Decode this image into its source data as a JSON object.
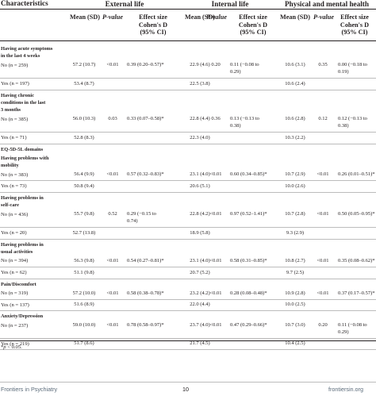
{
  "header": {
    "characteristics": "Characteristics",
    "groups": [
      "External life",
      "Internal life",
      "Physical and mental health"
    ],
    "mean_sd": "Mean (SD)",
    "p_value": "P-value",
    "effect_size_line1": "Effect size",
    "effect_size_line2": "Cohen's D",
    "effect_size_line3": "(95% CI)"
  },
  "rows": [
    {
      "kind": "section",
      "lines": [
        "Having acute symptoms",
        "in the last 4 weeks"
      ]
    },
    {
      "kind": "data",
      "label": "No (n = 259)",
      "m1": "57.2 (10.7)",
      "p1": "<0.01",
      "e1": [
        "0.39 (0.20–0.57)*"
      ],
      "m2": "22.9 (4.6)",
      "p2": "0.20",
      "e2": [
        "0.11 (−0.08 to",
        "0.29)"
      ],
      "m3": "10.6 (3.1)",
      "p3": "0.35",
      "e3": [
        "0.00 (−0.18 to",
        "0.19)"
      ]
    },
    {
      "kind": "data",
      "label": "Yes (n = 197)",
      "m1": "53.4 (8.7)",
      "p1": "",
      "e1": [],
      "m2": "22.5 (3.8)",
      "p2": "",
      "e2": [],
      "m3": "10.6 (2.4)",
      "p3": "",
      "e3": []
    },
    {
      "kind": "section",
      "lines": [
        "Having chronic",
        "conditions in the last",
        "3 months"
      ]
    },
    {
      "kind": "data",
      "label": "No (n = 385)",
      "m1": "56.0 (10.3)",
      "p1": "0.03",
      "e1": [
        "0.33 (0.07–0.58)*"
      ],
      "m2": "22.8 (4.4)",
      "p2": "0.36",
      "e2": [
        "0.13 (−0.13 to",
        "0.38)"
      ],
      "m3": "10.6 (2.8)",
      "p3": "0.12",
      "e3": [
        "0.12 (−0.13 to",
        "0.38)"
      ]
    },
    {
      "kind": "data",
      "label": "Yes (n = 71)",
      "m1": "52.8 (8.3)",
      "p1": "",
      "e1": [],
      "m2": "22.3 (4.0)",
      "p2": "",
      "e2": [],
      "m3": "10.3 (2.2)",
      "p3": "",
      "e3": []
    },
    {
      "kind": "section",
      "lines": [
        "EQ-5D-5L domains"
      ]
    },
    {
      "kind": "section",
      "lines": [
        "Having problems with",
        "mobility"
      ]
    },
    {
      "kind": "data",
      "label": "No (n = 383)",
      "m1": "56.4 (9.9)",
      "p1": "<0.01",
      "e1": [
        "0.57 (0.32–0.83)*"
      ],
      "m2": "23.1 (4.0)",
      "p2": "<0.01",
      "e2": [
        "0.60 (0.34–0.85)*"
      ],
      "m3": "10.7 (2.9)",
      "p3": "<0.01",
      "e3": [
        "0.26 (0.01–0.51)*"
      ]
    },
    {
      "kind": "data",
      "label": "Yes (n = 73)",
      "m1": "50.8 (9.4)",
      "p1": "",
      "e1": [],
      "m2": "20.6 (5.1)",
      "p2": "",
      "e2": [],
      "m3": "10.0 (2.6)",
      "p3": "",
      "e3": []
    },
    {
      "kind": "section",
      "lines": [
        "Having problems in",
        "self-care"
      ]
    },
    {
      "kind": "data",
      "label": "No (n = 436)",
      "m1": "55.7 (9.8)",
      "p1": "0.52",
      "e1": [
        "0.29 (−0.15 to",
        "0.74)"
      ],
      "m2": "22.8 (4.2)",
      "p2": "<0.01",
      "e2": [
        "0.97 (0.52–1.41)*"
      ],
      "m3": "10.7 (2.8)",
      "p3": "<0.01",
      "e3": [
        "0.50 (0.05–0.95)*"
      ]
    },
    {
      "kind": "data",
      "label": "Yes (n = 20)",
      "m1": "52.7 (13.8)",
      "p1": "",
      "e1": [],
      "m2": "18.9 (5.8)",
      "p2": "",
      "e2": [],
      "m3": "9.3 (2.9)",
      "p3": "",
      "e3": []
    },
    {
      "kind": "section",
      "lines": [
        "Having problems in",
        "usual activities"
      ]
    },
    {
      "kind": "data",
      "label": "No (n = 394)",
      "m1": "56.3 (9.8)",
      "p1": "<0.01",
      "e1": [
        "0.54 (0.27–0.81)*"
      ],
      "m2": "23.1 (4.0)",
      "p2": "<0.01",
      "e2": [
        "0.58 (0.31–0.85)*"
      ],
      "m3": "10.8 (2.7)",
      "p3": "<0.01",
      "e3": [
        "0.35 (0.08–0.62)*"
      ]
    },
    {
      "kind": "data",
      "label": "Yes (n = 62)",
      "m1": "51.1 (9.8)",
      "p1": "",
      "e1": [],
      "m2": "20.7 (5.2)",
      "p2": "",
      "e2": [],
      "m3": "9.7 (2.5)",
      "p3": "",
      "e3": []
    },
    {
      "kind": "section",
      "lines": [
        "Pain/Discomfort"
      ]
    },
    {
      "kind": "data",
      "label": "No (n = 319)",
      "m1": "57.2 (10.0)",
      "p1": "<0.01",
      "e1": [
        "0.58 (0.38–0.78)*"
      ],
      "m2": "23.2 (4.2)",
      "p2": "<0.01",
      "e2": [
        "0.28 (0.08–0.48)*"
      ],
      "m3": "10.9 (2.8)",
      "p3": "<0.01",
      "e3": [
        "0.37 (0.17–0.57)*"
      ]
    },
    {
      "kind": "data",
      "label": "Yes (n = 137)",
      "m1": "51.6 (8.9)",
      "p1": "",
      "e1": [],
      "m2": "22.0 (4.4)",
      "p2": "",
      "e2": [],
      "m3": "10.0 (2.5)",
      "p3": "",
      "e3": []
    },
    {
      "kind": "section",
      "lines": [
        "Anxiety/Depression"
      ]
    },
    {
      "kind": "data",
      "label": "No (n = 237)",
      "m1": "59.0 (10.0)",
      "p1": "<0.01",
      "e1": [
        "0.78 (0.58–0.97)*"
      ],
      "m2": "23.7 (4.0)",
      "p2": "<0.01",
      "e2": [
        "0.47 (0.29–0.66)*"
      ],
      "m3": "10.7 (3.0)",
      "p3": "0.20",
      "e3": [
        "0.11 (−0.08 to",
        "0.29)"
      ]
    },
    {
      "kind": "data",
      "label": "Yes (n = 219)",
      "m1": "51.7 (8.6)",
      "p1": "",
      "e1": [],
      "m2": "21.7 (4.5)",
      "p2": "",
      "e2": [],
      "m3": "10.4 (2.5)",
      "p3": "",
      "e3": []
    }
  ],
  "footnote": {
    "symbol": "*",
    "italic": "p",
    "text": " < 0.05."
  },
  "page_footer": {
    "journal": "Frontiers in Psychiatry",
    "page_number": "10",
    "site": "frontiersin.org"
  }
}
